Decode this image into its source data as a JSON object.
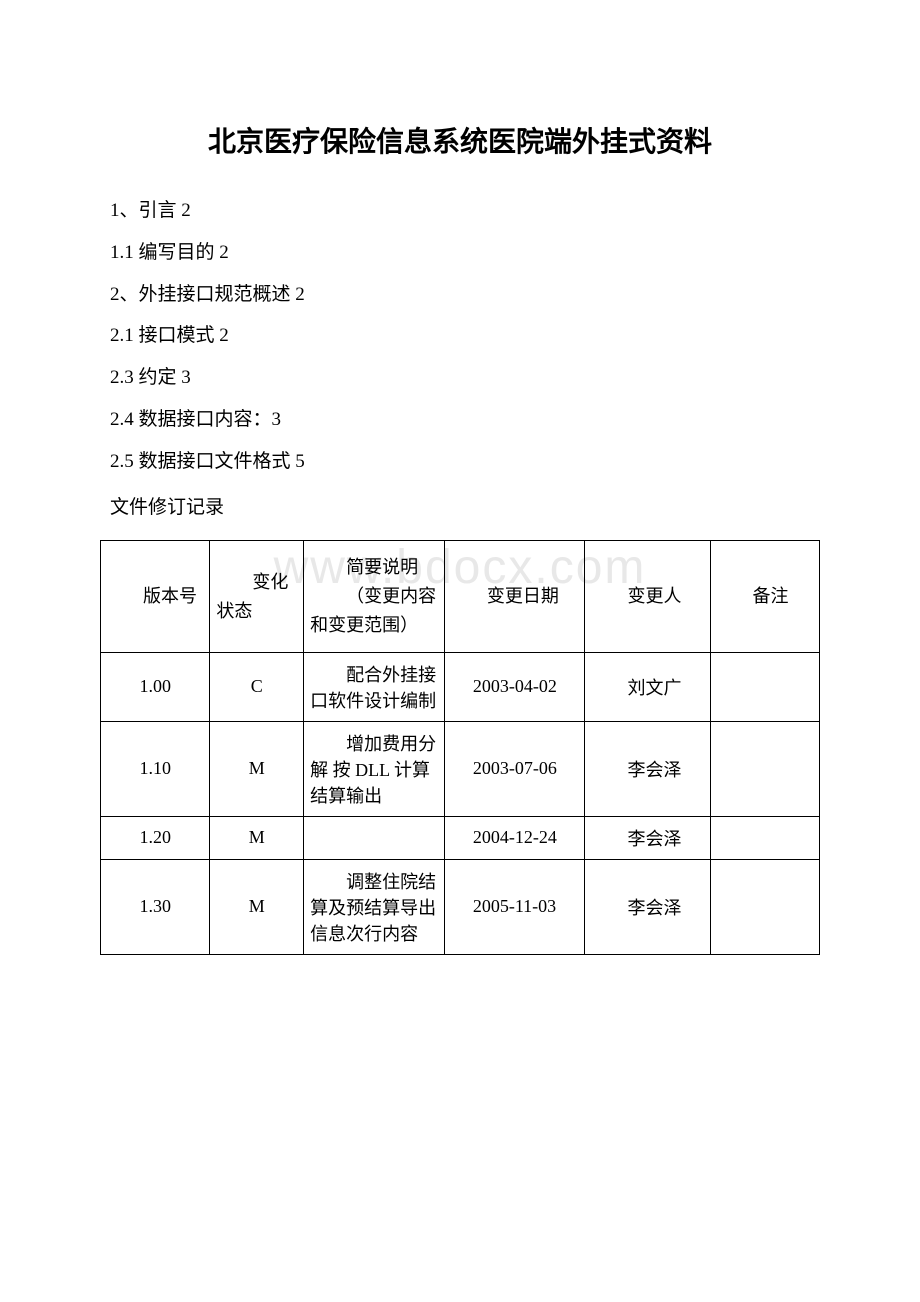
{
  "title": "北京医疗保险信息系统医院端外挂式资料",
  "toc": [
    "1、引言 2",
    "1.1 编写目的 2",
    "2、外挂接口规范概述 2",
    "2.1 接口模式 2",
    "2.3 约定 3",
    "2.4 数据接口内容：3",
    "2.5 数据接口文件格式 5"
  ],
  "section_label": "文件修订记录",
  "watermark": "www.bdocx.com",
  "table": {
    "headers": {
      "version": "版本号",
      "status": "变化状态",
      "desc": "简要说明",
      "desc_sub": "（变更内容和变更范围）",
      "date": "变更日期",
      "person": "变更人",
      "remark": "备注"
    },
    "rows": [
      {
        "version": "1.00",
        "status": "C",
        "desc": "配合外挂接口软件设计编制",
        "date": "2003-04-02",
        "person": "刘文广",
        "remark": ""
      },
      {
        "version": "1.10",
        "status": "M",
        "desc": "增加费用分解 按 DLL 计算结算输出",
        "date": "2003-07-06",
        "person": "李会泽",
        "remark": ""
      },
      {
        "version": "1.20",
        "status": "M",
        "desc": "",
        "date": "2004-12-24",
        "person": "李会泽",
        "remark": ""
      },
      {
        "version": "1.30",
        "status": "M",
        "desc": "调整住院结算及预结算导出信息次行内容",
        "date": "2005-11-03",
        "person": "李会泽",
        "remark": ""
      }
    ]
  }
}
